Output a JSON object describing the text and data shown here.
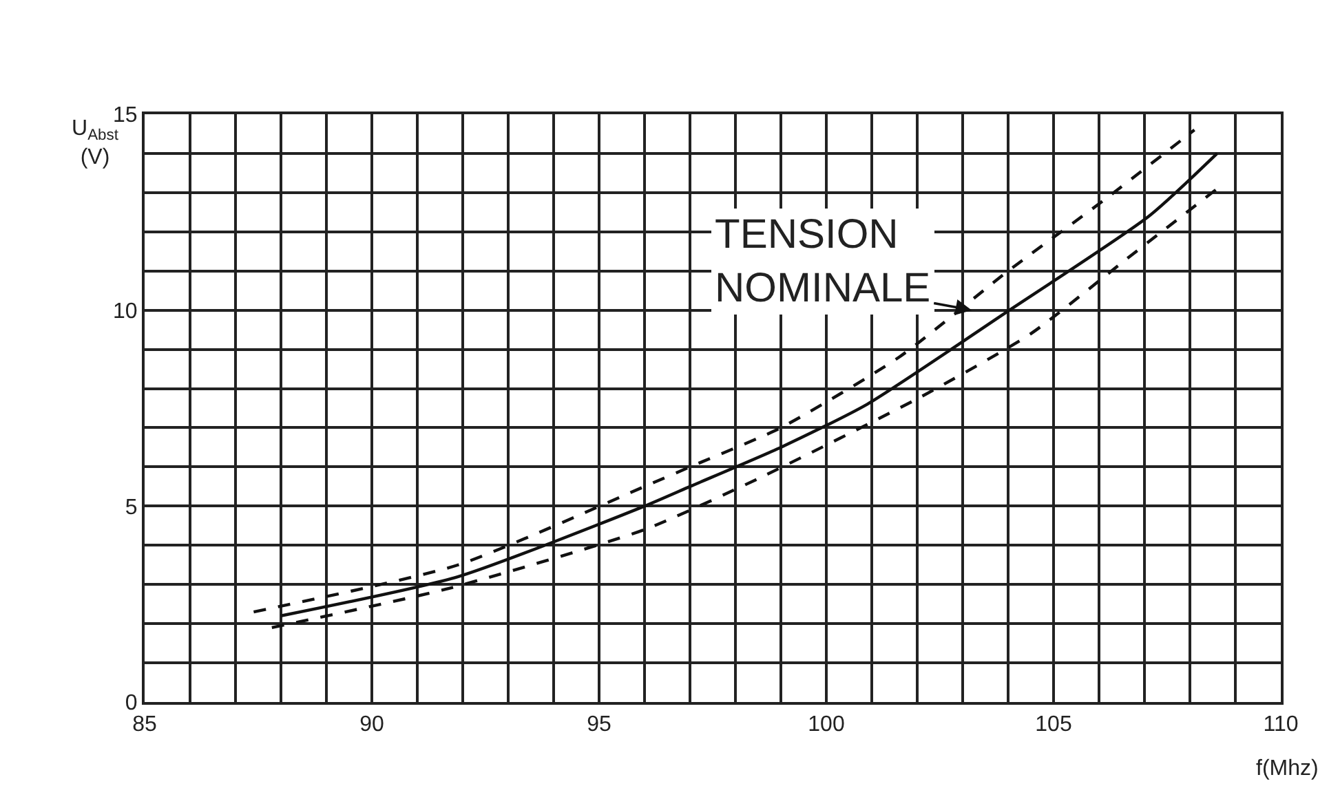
{
  "chart_data": {
    "type": "line",
    "xlabel": "f(Mhz)",
    "ylabel": "U$_{Abst}$\n(V)",
    "xlim": [
      85,
      110
    ],
    "ylim": [
      0,
      15
    ],
    "xticks": [
      85,
      {
        "value": 86,
        "label": null
      },
      {
        "value": 87,
        "label": null
      },
      {
        "value": 88,
        "label": null
      },
      {
        "value": 89,
        "label": null
      },
      90,
      {
        "value": 91,
        "label": null
      },
      {
        "value": 92,
        "label": null
      },
      {
        "value": 93,
        "label": null
      },
      {
        "value": 94,
        "label": null
      },
      95,
      {
        "value": 96,
        "label": null
      },
      {
        "value": 97,
        "label": null
      },
      {
        "value": 98,
        "label": null
      },
      {
        "value": 99,
        "label": null
      },
      100,
      {
        "value": 101,
        "label": null
      },
      {
        "value": 102,
        "label": null
      },
      {
        "value": 103,
        "label": null
      },
      {
        "value": 104,
        "label": null
      },
      105,
      {
        "value": 106,
        "label": null
      },
      {
        "value": 107,
        "label": null
      },
      {
        "value": 108,
        "label": null
      },
      {
        "value": 109,
        "label": null
      },
      110
    ],
    "yticks": [
      0,
      {
        "value": 1,
        "label": null
      },
      {
        "value": 2,
        "label": null
      },
      {
        "value": 3,
        "label": null
      },
      {
        "value": 4,
        "label": null
      },
      5,
      {
        "value": 6,
        "label": null
      },
      {
        "value": 7,
        "label": null
      },
      {
        "value": 8,
        "label": null
      },
      {
        "value": 9,
        "label": null
      },
      10,
      {
        "value": 11,
        "label": null
      },
      {
        "value": 12,
        "label": null
      },
      {
        "value": 13,
        "label": null
      },
      {
        "value": 14,
        "label": null
      },
      15
    ],
    "grid": true,
    "marker": "none",
    "series": [
      {
        "color": "#111111",
        "line_style": "solid",
        "x": [
          88.0,
          91.9,
          96.0,
          97.0,
          99.0,
          100.9,
          103.9,
          107.1,
          108.6
        ],
        "values": [
          2.2,
          3.2,
          5.0,
          5.5,
          6.5,
          7.6,
          9.9,
          12.4,
          14.0
        ]
      },
      {
        "color": "#111111",
        "line_style": "dashed",
        "x": [
          87.4,
          91.9,
          96.0,
          97.0,
          99.0,
          101.6,
          104.0,
          106.1,
          108.1
        ],
        "values": [
          2.3,
          3.5,
          5.5,
          6.0,
          7.0,
          8.8,
          11.0,
          12.8,
          14.6
        ]
      },
      {
        "color": "#111111",
        "line_style": "dashed",
        "x": [
          87.8,
          91.7,
          96.0,
          98.5,
          102.1,
          104.5,
          106.6,
          108.6
        ],
        "values": [
          1.9,
          2.9,
          4.4,
          5.7,
          7.8,
          9.4,
          11.3,
          13.1
        ]
      }
    ],
    "annotations": [
      {
        "text": "TENSION\nNOMINALE",
        "x": 103.2,
        "y": 10.0
      }
    ]
  }
}
